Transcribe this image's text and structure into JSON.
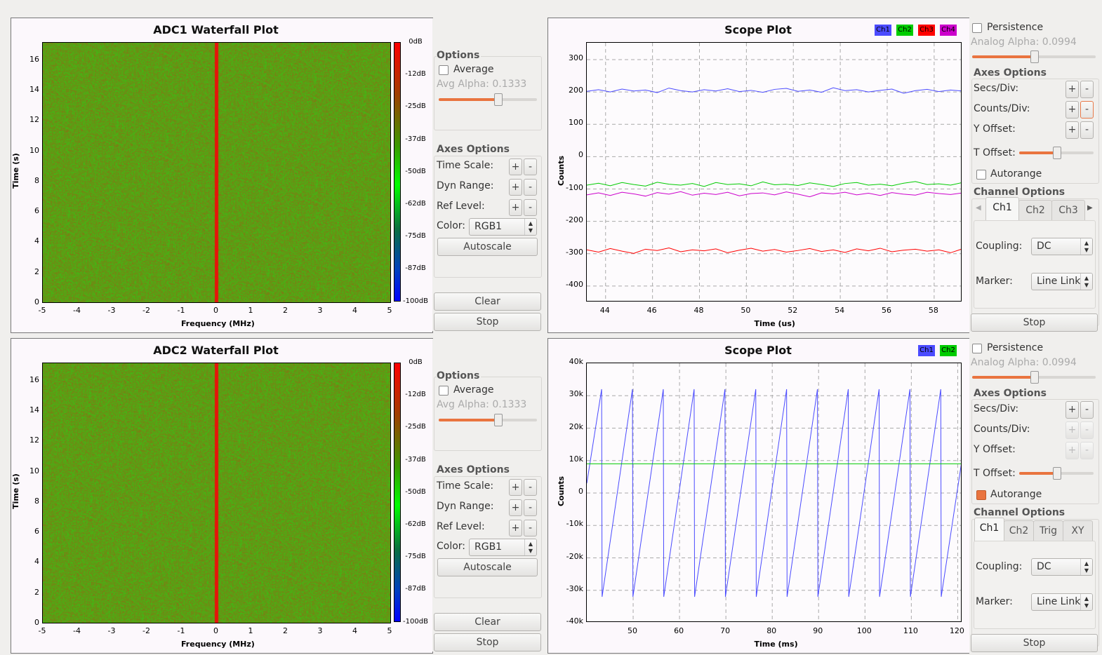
{
  "waterfalls": [
    {
      "title": "ADC1 Waterfall Plot",
      "ylabel": "Time (s)",
      "xlabel": "Frequency (MHz)",
      "yticks": [
        "0",
        "2",
        "4",
        "6",
        "8",
        "10",
        "12",
        "14",
        "16"
      ],
      "xticks": [
        "-5",
        "-4",
        "-3",
        "-2",
        "-1",
        "0",
        "1",
        "2",
        "3",
        "4",
        "5"
      ],
      "colorbar": [
        "0dB",
        "-12dB",
        "-25dB",
        "-37dB",
        "-50dB",
        "-62dB",
        "-75dB",
        "-87dB",
        "-100dB"
      ],
      "options": {
        "header": "Options",
        "average": "Average",
        "average_checked": false,
        "avg_alpha": "Avg Alpha: 0.1333",
        "avg_alpha_value": 0.1333
      },
      "axes": {
        "header": "Axes Options",
        "time_scale": "Time Scale:",
        "dyn_range": "Dyn Range:",
        "ref_level": "Ref Level:",
        "color_label": "Color:",
        "color_value": "RGB1",
        "autoscale": "Autoscale"
      },
      "plus": "+",
      "minus": "-",
      "clear": "Clear",
      "stop": "Stop"
    },
    {
      "title": "ADC2 Waterfall Plot",
      "ylabel": "Time (s)",
      "xlabel": "Frequency (MHz)",
      "yticks": [
        "0",
        "2",
        "4",
        "6",
        "8",
        "10",
        "12",
        "14",
        "16"
      ],
      "xticks": [
        "-5",
        "-4",
        "-3",
        "-2",
        "-1",
        "0",
        "1",
        "2",
        "3",
        "4",
        "5"
      ],
      "colorbar": [
        "0dB",
        "-12dB",
        "-25dB",
        "-37dB",
        "-50dB",
        "-62dB",
        "-75dB",
        "-87dB",
        "-100dB"
      ],
      "options": {
        "header": "Options",
        "average": "Average",
        "average_checked": false,
        "avg_alpha": "Avg Alpha: 0.1333",
        "avg_alpha_value": 0.1333
      },
      "axes": {
        "header": "Axes Options",
        "time_scale": "Time Scale:",
        "dyn_range": "Dyn Range:",
        "ref_level": "Ref Level:",
        "color_label": "Color:",
        "color_value": "RGB1",
        "autoscale": "Autoscale"
      },
      "plus": "+",
      "minus": "-",
      "clear": "Clear",
      "stop": "Stop"
    }
  ],
  "scopes": [
    {
      "title": "Scope Plot",
      "legend": [
        {
          "name": "Ch1",
          "color": "#4b4bff"
        },
        {
          "name": "Ch2",
          "color": "#00cc00"
        },
        {
          "name": "Ch3",
          "color": "#ff0000"
        },
        {
          "name": "Ch4",
          "color": "#cc00cc"
        }
      ],
      "controls": {
        "persistence": "Persistence",
        "persistence_checked": false,
        "analog_alpha": "Analog Alpha: 0.0994",
        "analog_alpha_value": 0.0994,
        "axes_header": "Axes Options",
        "secs_div": "Secs/Div:",
        "counts_div": "Counts/Div:",
        "y_offset": "Y Offset:",
        "t_offset": "T Offset:",
        "t_offset_fraction": 0.5,
        "autorange": "Autorange",
        "autorange_checked": false,
        "channel_header": "Channel Options",
        "tabs": [
          "Ch1",
          "Ch2",
          "Ch3"
        ],
        "tab_arrows": true,
        "active_tab": "Ch1",
        "coupling": "Coupling:",
        "coupling_value": "DC",
        "marker": "Marker:",
        "marker_value": "Line Link",
        "plus": "+",
        "minus": "-",
        "stop": "Stop",
        "counts_disabled": false
      }
    },
    {
      "title": "Scope Plot",
      "legend": [
        {
          "name": "Ch1",
          "color": "#4b4bff"
        },
        {
          "name": "Ch2",
          "color": "#00cc00"
        }
      ],
      "controls": {
        "persistence": "Persistence",
        "persistence_checked": false,
        "analog_alpha": "Analog Alpha: 0.0994",
        "analog_alpha_value": 0.0994,
        "axes_header": "Axes Options",
        "secs_div": "Secs/Div:",
        "counts_div": "Counts/Div:",
        "y_offset": "Y Offset:",
        "t_offset": "T Offset:",
        "t_offset_fraction": 0.5,
        "autorange": "Autorange",
        "autorange_checked": true,
        "channel_header": "Channel Options",
        "tabs": [
          "Ch1",
          "Ch2",
          "Trig",
          "XY"
        ],
        "tab_arrows": false,
        "active_tab": "Ch1",
        "coupling": "Coupling:",
        "coupling_value": "DC",
        "marker": "Marker:",
        "marker_value": "Line Link",
        "plus": "+",
        "minus": "-",
        "stop": "Stop",
        "counts_disabled": true
      }
    }
  ],
  "chart_data": [
    {
      "type": "heatmap",
      "title": "ADC1 Waterfall Plot",
      "xlabel": "Frequency (MHz)",
      "ylabel": "Time (s)",
      "xlim": [
        -5,
        5
      ],
      "ylim": [
        0,
        17.2
      ],
      "colorbar_range_db": [
        -100,
        0
      ],
      "peak_frequency": 0
    },
    {
      "type": "line",
      "title": "Scope Plot",
      "xlabel": "Time (us)",
      "ylabel": "Counts",
      "xlim": [
        43.2,
        59.2
      ],
      "ylim": [
        -450,
        352
      ],
      "grid": true,
      "legend_placement": "top-right",
      "xticks": [
        44,
        46,
        48,
        50,
        52,
        54,
        56,
        58
      ],
      "yticks": [
        300,
        200,
        100,
        0,
        -100,
        -200,
        -300,
        -400
      ],
      "x_start": 43.2,
      "x_step": 0.5,
      "series": [
        {
          "name": "Ch1",
          "color": "#4b4bff",
          "values": [
            202,
            207,
            200,
            209,
            203,
            206,
            198,
            212,
            204,
            200,
            207,
            203,
            210,
            201,
            205,
            199,
            208,
            211,
            202,
            206,
            199,
            213,
            204,
            207,
            200,
            205,
            209,
            196,
            204,
            208,
            201,
            206,
            203
          ]
        },
        {
          "name": "Ch2",
          "color": "#00cc00",
          "values": [
            -88,
            -82,
            -90,
            -80,
            -86,
            -91,
            -79,
            -85,
            -88,
            -83,
            -92,
            -80,
            -86,
            -84,
            -90,
            -78,
            -87,
            -85,
            -89,
            -81,
            -86,
            -92,
            -83,
            -80,
            -88,
            -85,
            -90,
            -82,
            -77,
            -86,
            -84,
            -88,
            -80
          ]
        },
        {
          "name": "Ch3",
          "color": "#ff0000",
          "values": [
            -288,
            -295,
            -284,
            -292,
            -299,
            -286,
            -290,
            -282,
            -294,
            -288,
            -291,
            -285,
            -297,
            -289,
            -283,
            -292,
            -287,
            -295,
            -290,
            -284,
            -293,
            -288,
            -296,
            -285,
            -291,
            -283,
            -294,
            -289,
            -286,
            -292,
            -288,
            -297,
            -285
          ]
        },
        {
          "name": "Ch4",
          "color": "#cc00cc",
          "values": [
            -118,
            -112,
            -120,
            -110,
            -115,
            -122,
            -111,
            -116,
            -108,
            -119,
            -113,
            -117,
            -110,
            -121,
            -114,
            -112,
            -118,
            -109,
            -116,
            -124,
            -112,
            -115,
            -110,
            -118,
            -113,
            -120,
            -111,
            -116,
            -119,
            -110,
            -114,
            -117,
            -112
          ]
        }
      ]
    },
    {
      "type": "heatmap",
      "title": "ADC2 Waterfall Plot",
      "xlabel": "Frequency (MHz)",
      "ylabel": "Time (s)",
      "xlim": [
        -5,
        5
      ],
      "ylim": [
        0,
        17.2
      ],
      "colorbar_range_db": [
        -100,
        0
      ],
      "peak_frequency": 0
    },
    {
      "type": "line",
      "title": "Scope Plot",
      "xlabel": "Time (ms)",
      "ylabel": "Counts",
      "xlim": [
        40,
        121
      ],
      "ylim": [
        -40000,
        40000
      ],
      "grid": true,
      "legend_placement": "top-right",
      "xticks": [
        50,
        60,
        70,
        80,
        90,
        100,
        110,
        120
      ],
      "yticks": [
        "40k",
        "30k",
        "20k",
        "10k",
        "0",
        "-10k",
        "-20k",
        "-30k",
        "-40k"
      ],
      "series": [
        {
          "name": "Ch1",
          "color": "#4b4bff",
          "x": [
            40,
            43.2,
            43.3,
            49.85,
            49.95,
            56.5,
            56.6,
            63.15,
            63.25,
            69.8,
            69.9,
            76.45,
            76.55,
            83.1,
            83.2,
            89.75,
            89.85,
            96.4,
            96.5,
            103.05,
            103.15,
            109.7,
            109.8,
            116.35,
            116.45,
            121
          ],
          "y": [
            3000,
            32000,
            -32000,
            32000,
            -32000,
            32000,
            -32000,
            32000,
            -32000,
            32000,
            -32000,
            32000,
            -32000,
            32000,
            -32000,
            32000,
            -32000,
            32000,
            -32000,
            32000,
            -32000,
            32000,
            -32000,
            32000,
            -32000,
            11000
          ]
        },
        {
          "name": "Ch2",
          "color": "#00cc00",
          "x": [
            40,
            121
          ],
          "y": [
            9000,
            9000
          ]
        }
      ]
    }
  ]
}
